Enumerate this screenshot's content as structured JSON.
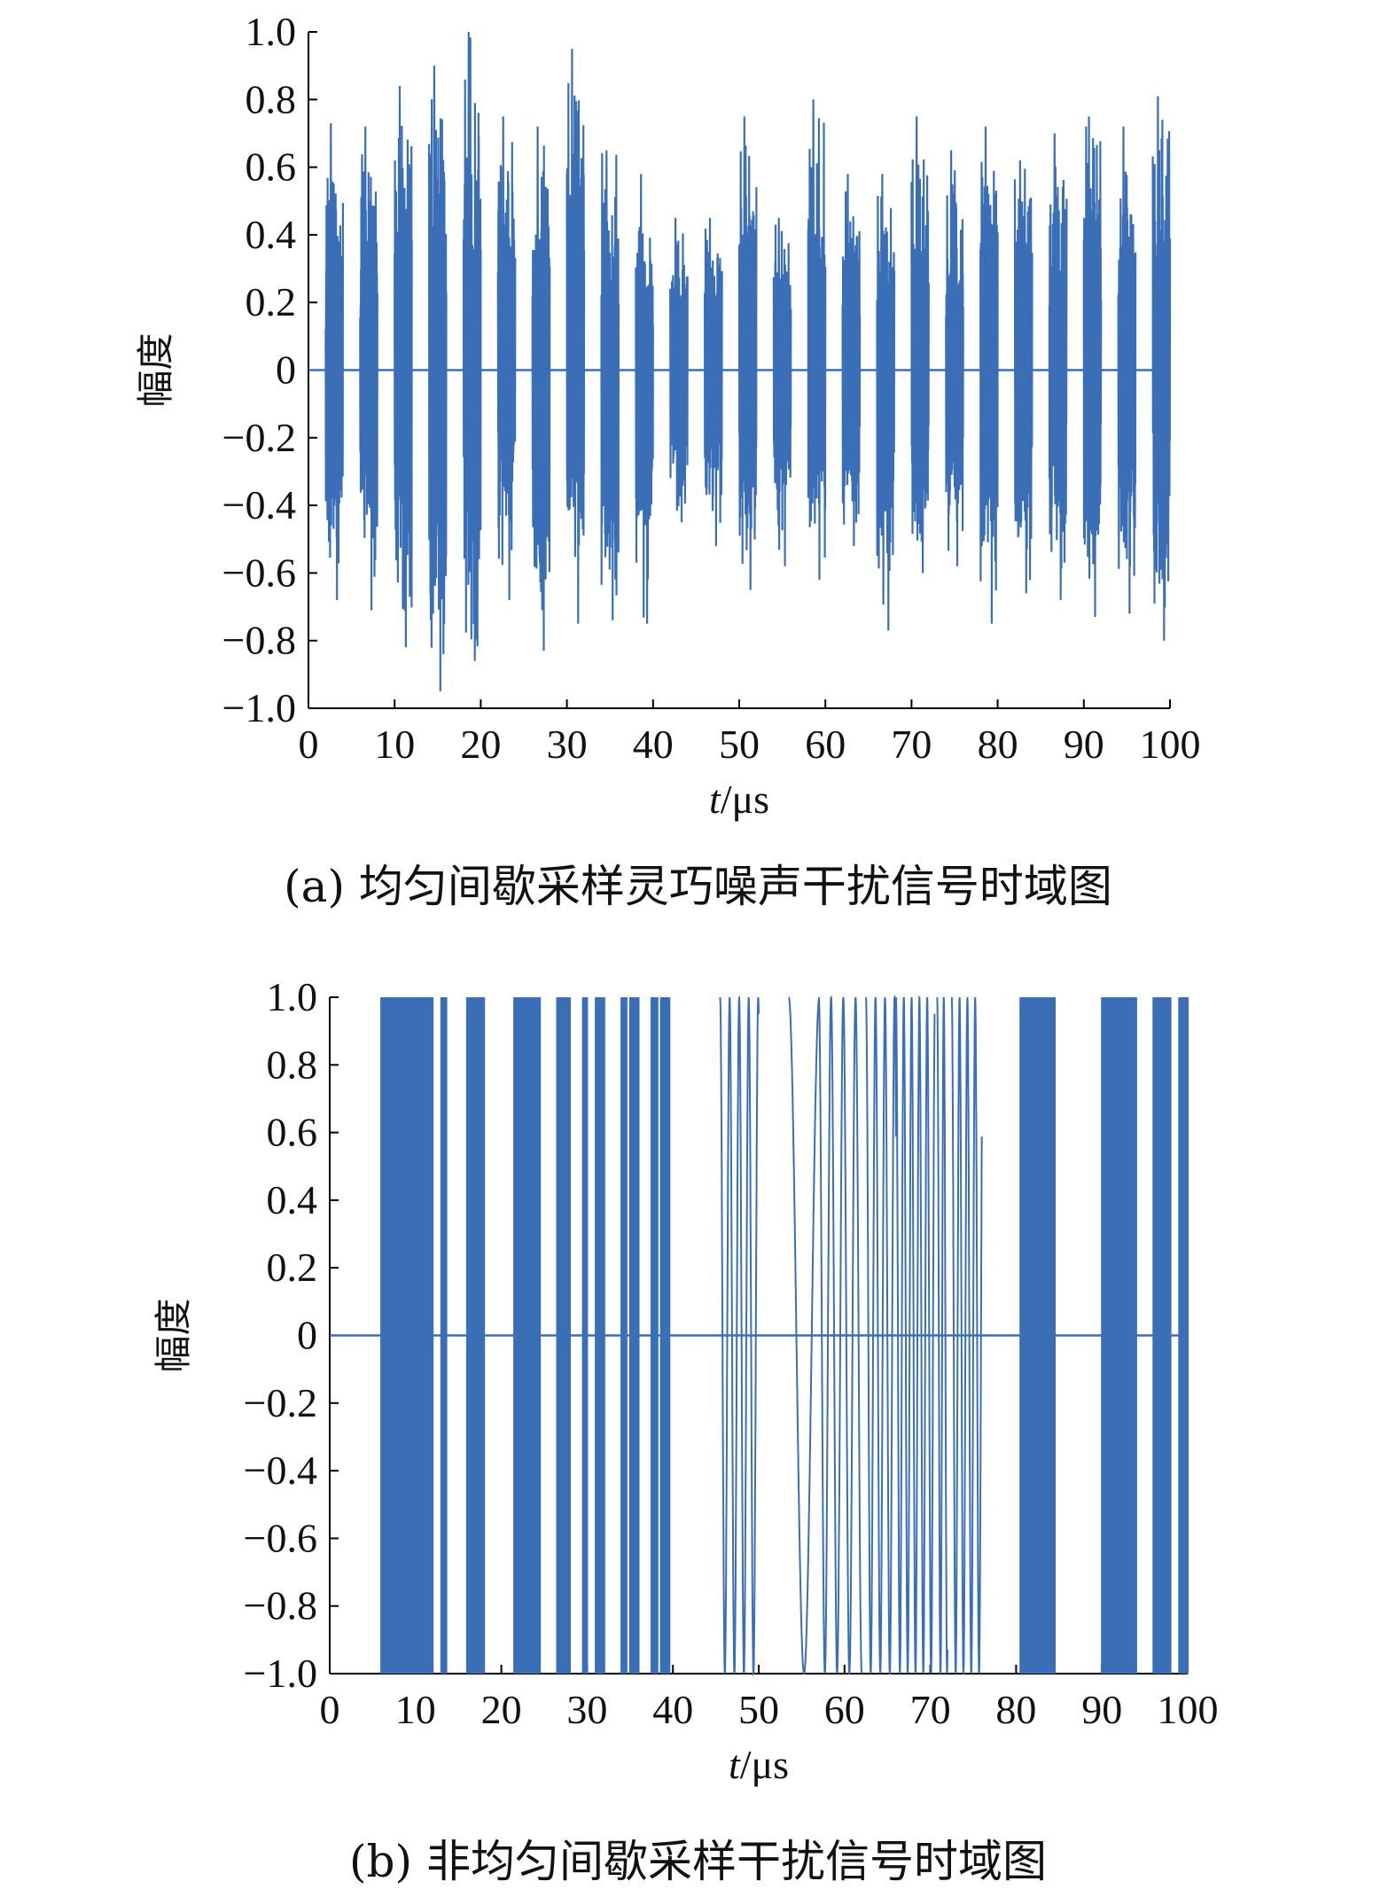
{
  "chart_data": [
    {
      "type": "line",
      "panel": "a",
      "caption": "(a) 均匀间歇采样灵巧噪声干扰信号时域图",
      "xlabel_italic": "t",
      "xlabel_unit": "/μs",
      "ylabel": "幅度",
      "xlim": [
        0,
        100
      ],
      "ylim": [
        -1.0,
        1.0
      ],
      "xticks": [
        "0",
        "10",
        "20",
        "30",
        "40",
        "50",
        "60",
        "70",
        "80",
        "90",
        "100"
      ],
      "yticks": [
        "1.0",
        "0.8",
        "0.6",
        "0.4",
        "0.2",
        "0",
        "−0.2",
        "−0.4",
        "−0.6",
        "−0.8",
        "−1.0"
      ],
      "grid": false,
      "line_color": "#3a6fb8",
      "period_us": 4,
      "on_duration_us": 2,
      "first_on_start_us": 2,
      "bursts": [
        {
          "start": 2,
          "end": 4,
          "max": 0.73,
          "min": -0.68
        },
        {
          "start": 6,
          "end": 8,
          "max": 0.72,
          "min": -0.71
        },
        {
          "start": 10,
          "end": 12,
          "max": 0.84,
          "min": -0.82
        },
        {
          "start": 14,
          "end": 16,
          "max": 0.9,
          "min": -0.95
        },
        {
          "start": 18,
          "end": 20,
          "max": 1.0,
          "min": -0.86
        },
        {
          "start": 22,
          "end": 24,
          "max": 0.75,
          "min": -0.68
        },
        {
          "start": 26,
          "end": 28,
          "max": 0.72,
          "min": -0.83
        },
        {
          "start": 30,
          "end": 32,
          "max": 0.95,
          "min": -0.75
        },
        {
          "start": 34,
          "end": 36,
          "max": 0.65,
          "min": -0.74
        },
        {
          "start": 38,
          "end": 40,
          "max": 0.58,
          "min": -0.75
        },
        {
          "start": 42,
          "end": 44,
          "max": 0.45,
          "min": -0.45
        },
        {
          "start": 46,
          "end": 48,
          "max": 0.45,
          "min": -0.52
        },
        {
          "start": 50,
          "end": 52,
          "max": 0.75,
          "min": -0.65
        },
        {
          "start": 54,
          "end": 56,
          "max": 0.45,
          "min": -0.58
        },
        {
          "start": 58,
          "end": 60,
          "max": 0.8,
          "min": -0.62
        },
        {
          "start": 62,
          "end": 64,
          "max": 0.58,
          "min": -0.52
        },
        {
          "start": 66,
          "end": 68,
          "max": 0.58,
          "min": -0.77
        },
        {
          "start": 70,
          "end": 72,
          "max": 0.75,
          "min": -0.6
        },
        {
          "start": 74,
          "end": 76,
          "max": 0.65,
          "min": -0.58
        },
        {
          "start": 78,
          "end": 80,
          "max": 0.72,
          "min": -0.75
        },
        {
          "start": 82,
          "end": 84,
          "max": 0.62,
          "min": -0.66
        },
        {
          "start": 86,
          "end": 88,
          "max": 0.7,
          "min": -0.68
        },
        {
          "start": 90,
          "end": 92,
          "max": 0.75,
          "min": -0.73
        },
        {
          "start": 94,
          "end": 96,
          "max": 0.72,
          "min": -0.72
        },
        {
          "start": 98,
          "end": 100,
          "max": 0.81,
          "min": -0.8
        }
      ]
    },
    {
      "type": "line",
      "panel": "b",
      "caption": "(b) 非均匀间歇采样干扰信号时域图",
      "xlabel_italic": "t",
      "xlabel_unit": "/μs",
      "ylabel": "幅度",
      "xlim": [
        0,
        100
      ],
      "ylim": [
        -1.0,
        1.0
      ],
      "xticks": [
        "0",
        "10",
        "20",
        "30",
        "40",
        "50",
        "60",
        "70",
        "80",
        "90",
        "100"
      ],
      "yticks": [
        "1.0",
        "0.8",
        "0.6",
        "0.4",
        "0.2",
        "0",
        "−0.2",
        "−0.4",
        "−0.6",
        "−0.8",
        "−1.0"
      ],
      "grid": false,
      "line_color": "#3a6fb8",
      "max": 1.0,
      "min": -1.0,
      "segments_dense": [
        [
          6,
          12
        ],
        [
          13,
          13.6
        ],
        [
          16,
          18
        ],
        [
          21.5,
          24.5
        ],
        [
          26.5,
          28
        ],
        [
          29.5,
          30
        ],
        [
          31,
          32
        ],
        [
          34,
          34.6
        ],
        [
          35,
          36
        ],
        [
          37.5,
          38.2
        ],
        [
          38.6,
          39.6
        ],
        [
          80.5,
          84.5
        ],
        [
          90,
          94
        ],
        [
          96,
          98
        ],
        [
          99,
          100
        ]
      ],
      "segments_sparse": [
        {
          "range": [
            45.5,
            50
          ],
          "freq": 0.9
        },
        {
          "range": [
            53.5,
            57
          ],
          "freq": 0.28
        },
        {
          "range": [
            57,
            62
          ],
          "freq": 0.7
        },
        {
          "range": [
            62.5,
            66
          ],
          "freq": 0.9
        },
        {
          "range": [
            66,
            70.5
          ],
          "freq": 1.1
        },
        {
          "range": [
            70.8,
            72
          ],
          "freq": 1.3
        },
        {
          "range": [
            72.5,
            76
          ],
          "freq": 1.1
        }
      ]
    }
  ]
}
